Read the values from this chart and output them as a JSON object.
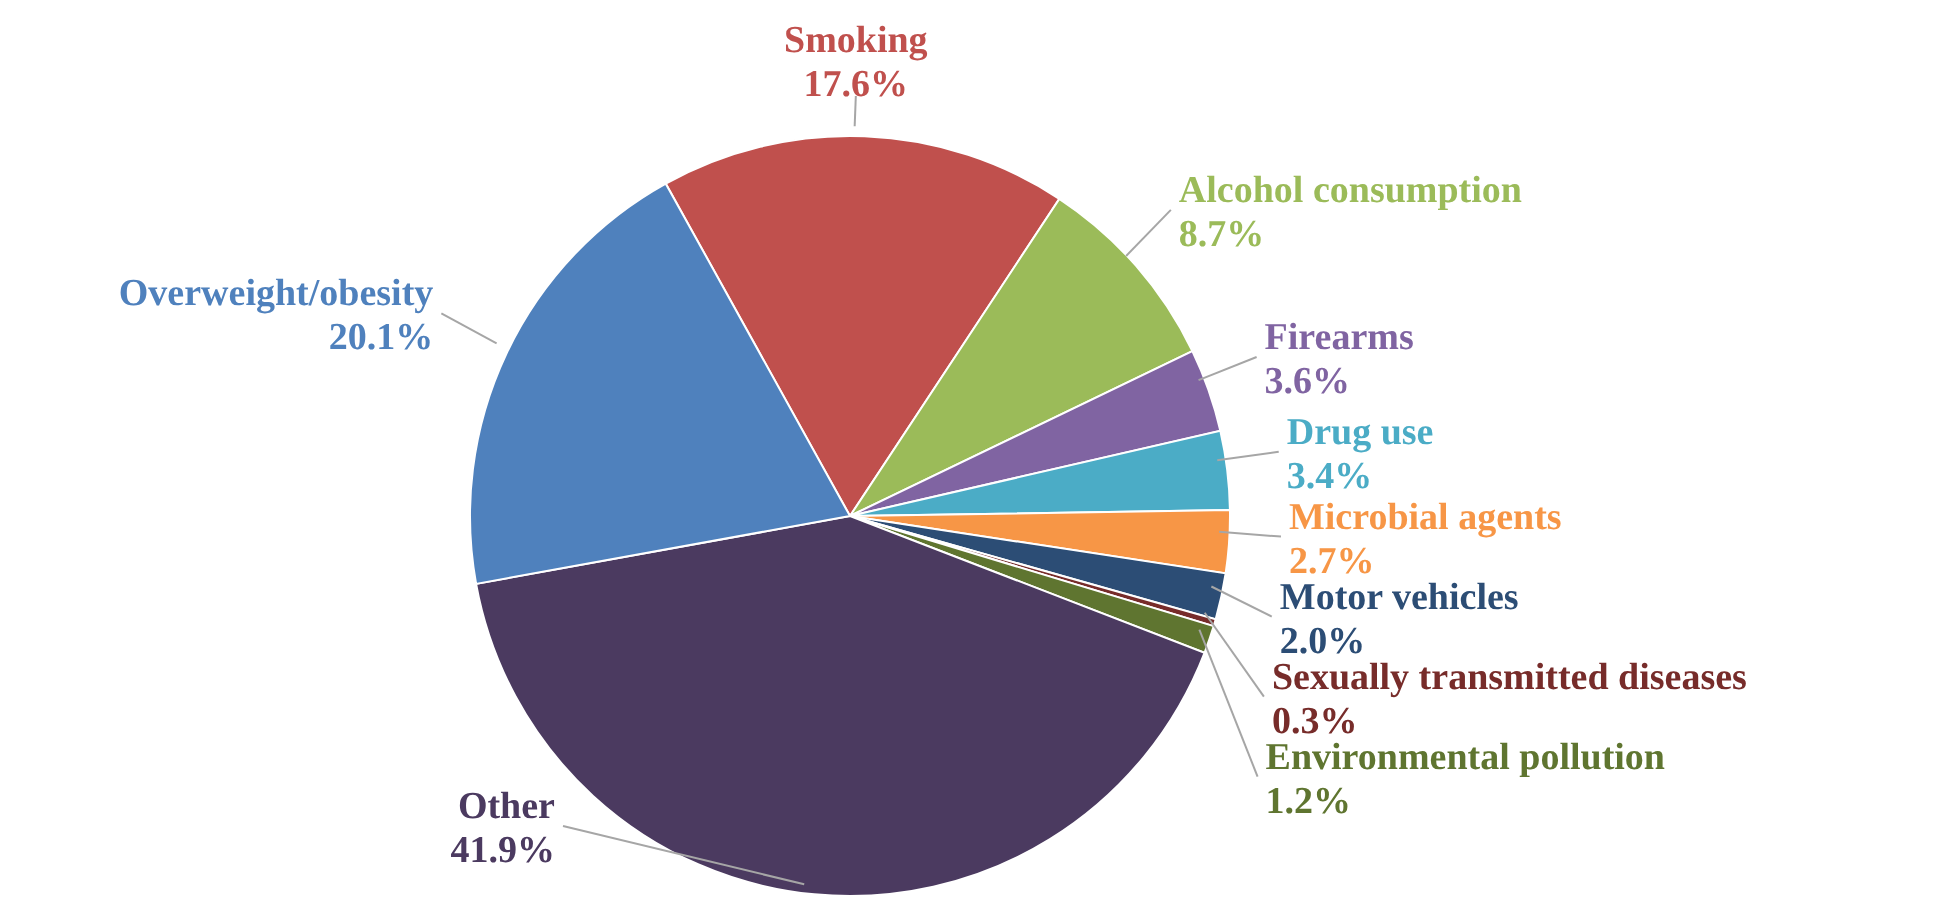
{
  "chart_data": {
    "type": "pie",
    "categories": [
      "Smoking",
      "Alcohol consumption",
      "Firearms",
      "Drug use",
      "Microbial agents",
      "Motor vehicles",
      "Sexually transmitted diseases",
      "Environmental pollution",
      "Other",
      "Overweight/obesity"
    ],
    "values": [
      17.6,
      8.7,
      3.6,
      3.4,
      2.7,
      2.0,
      0.3,
      1.2,
      41.9,
      20.1
    ],
    "colors": [
      "#c0504d",
      "#9bbb59",
      "#8064a2",
      "#4bacc6",
      "#f79646",
      "#2c4d75",
      "#772c2a",
      "#5f7530",
      "#4b3a60",
      "#4f81bd"
    ],
    "value_labels": [
      "17.6%",
      "8.7%",
      "3.6%",
      "3.4%",
      "2.7%",
      "2.0%",
      "0.3%",
      "1.2%",
      "41.9%",
      "20.1%"
    ]
  }
}
